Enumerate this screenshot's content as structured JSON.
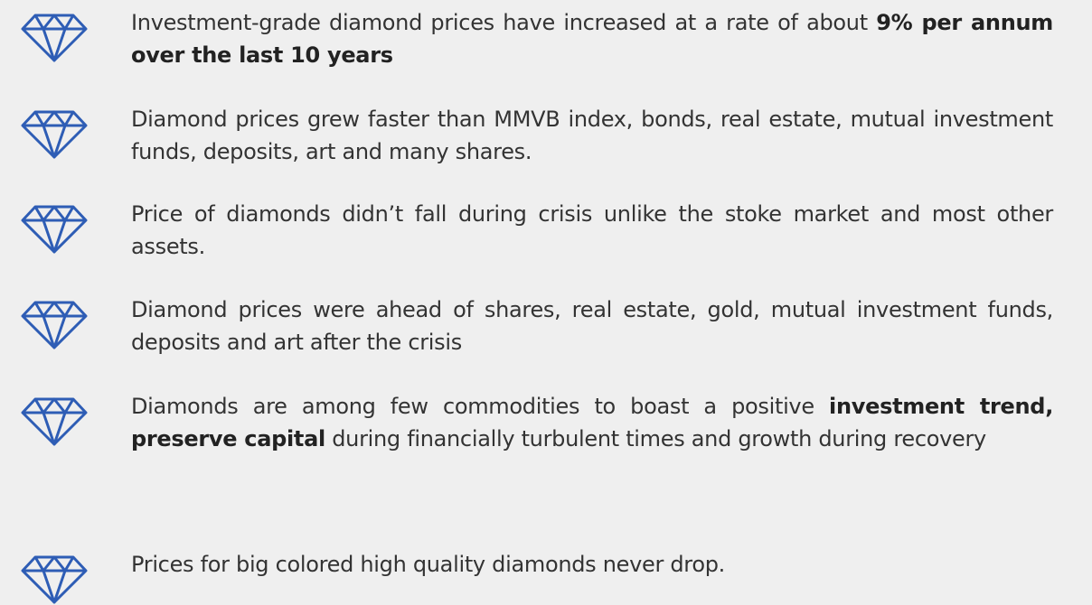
{
  "items": [
    {
      "segments": [
        {
          "text": "Investment-grade diamond prices have increased at a rate of about ",
          "bold": false
        },
        {
          "text": "9% per annum over the last 10 years",
          "bold": true
        }
      ]
    },
    {
      "segments": [
        {
          "text": "Diamond prices grew faster than MMVB index, bonds, real estate, mutual investment funds, deposits, art and many shares.",
          "bold": false
        }
      ]
    },
    {
      "segments": [
        {
          "text": "Price of diamonds didn’t fall during crisis unlike the stoke market and most other assets.",
          "bold": false
        }
      ]
    },
    {
      "segments": [
        {
          "text": "Diamond prices were ahead of shares, real estate, gold, mutual investment funds, deposits and art after the crisis",
          "bold": false
        }
      ]
    },
    {
      "segments": [
        {
          "text": "Diamonds are among few commodities to boast a positive ",
          "bold": false
        },
        {
          "text": "investment trend, preserve capital",
          "bold": true
        },
        {
          "text": " during financially turbulent times and growth during recovery",
          "bold": false
        }
      ]
    },
    {
      "segments": [
        {
          "text": "Prices for big colored high quality diamonds never drop.",
          "bold": false
        }
      ]
    }
  ]
}
